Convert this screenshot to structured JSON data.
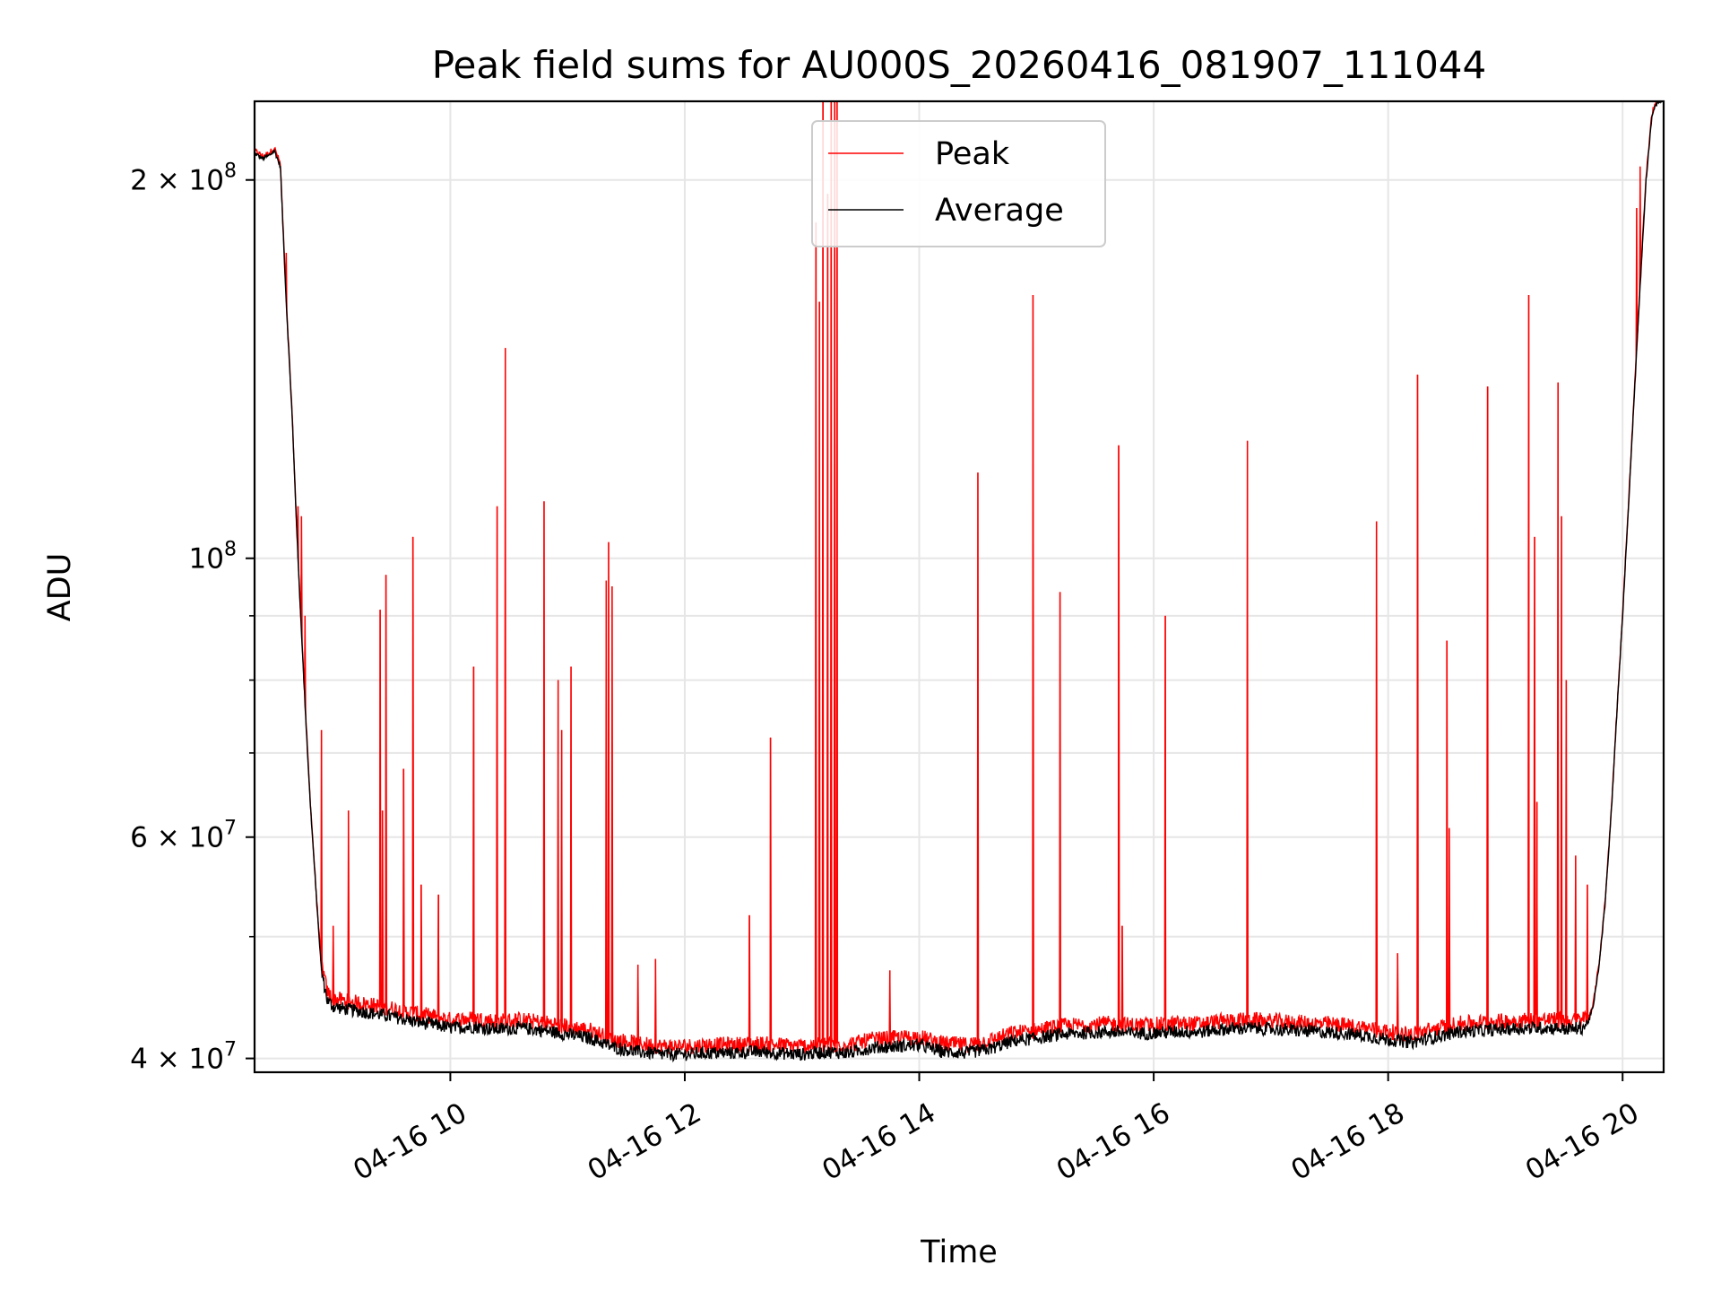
{
  "chart_data": {
    "type": "line",
    "title": "Peak field sums for AU000S_20260416_081907_111044",
    "xlabel": "Time",
    "ylabel": "ADU",
    "y_scale": "log",
    "ylim": [
      39000000,
      231000000
    ],
    "x_unit": "hours (2026-04-16)",
    "xlim": [
      8.33,
      20.35
    ],
    "grid": true,
    "legend_position": "top-center",
    "x_ticks": [
      {
        "value": 10,
        "label": "04-16 10"
      },
      {
        "value": 12,
        "label": "04-16 12"
      },
      {
        "value": 14,
        "label": "04-16 14"
      },
      {
        "value": 16,
        "label": "04-16 16"
      },
      {
        "value": 18,
        "label": "04-16 18"
      },
      {
        "value": 20,
        "label": "04-16 20"
      }
    ],
    "y_ticks": [
      {
        "value": 40000000,
        "base": "4 × 10",
        "exp": "7"
      },
      {
        "value": 60000000,
        "base": "6 × 10",
        "exp": "7"
      },
      {
        "value": 100000000,
        "base": "10",
        "exp": "8"
      },
      {
        "value": 200000000,
        "base": "2 × 10",
        "exp": "8"
      }
    ],
    "y_minor_ticks": [
      50000000,
      70000000,
      80000000,
      90000000
    ],
    "series": [
      {
        "name": "Average",
        "color": "#000000",
        "x": [
          8.33,
          8.4,
          8.45,
          8.5,
          8.55,
          8.6,
          8.65,
          8.7,
          8.75,
          8.8,
          8.85,
          8.9,
          8.95,
          9.0,
          9.1,
          9.3,
          9.5,
          9.7,
          9.9,
          10.0,
          10.2,
          10.4,
          10.6,
          10.8,
          11.0,
          11.2,
          11.4,
          11.6,
          11.8,
          12.0,
          12.2,
          12.4,
          12.6,
          12.8,
          13.0,
          13.2,
          13.4,
          13.6,
          13.8,
          14.0,
          14.2,
          14.4,
          14.6,
          14.8,
          15.0,
          15.2,
          15.4,
          15.6,
          15.8,
          16.0,
          16.2,
          16.4,
          16.6,
          16.8,
          17.0,
          17.2,
          17.4,
          17.6,
          17.8,
          18.0,
          18.2,
          18.4,
          18.6,
          18.8,
          19.0,
          19.2,
          19.4,
          19.55,
          19.65,
          19.7,
          19.75,
          19.8,
          19.85,
          19.9,
          19.95,
          20.0,
          20.05,
          20.1,
          20.15,
          20.2,
          20.25,
          20.3
        ],
        "y": [
          210000000,
          208000000,
          209000000,
          211000000,
          205000000,
          160000000,
          130000000,
          100000000,
          80000000,
          65000000,
          55000000,
          47000000,
          44500000,
          44000000,
          43800000,
          43500000,
          43200000,
          42800000,
          42500000,
          42300000,
          42400000,
          42200000,
          42300000,
          42100000,
          41800000,
          41500000,
          40800000,
          40500000,
          40300000,
          40300000,
          40400000,
          40400000,
          40500000,
          40400000,
          40300000,
          40500000,
          40400000,
          40800000,
          40900000,
          41000000,
          40500000,
          40400000,
          40700000,
          41300000,
          41500000,
          41800000,
          41900000,
          42000000,
          41900000,
          41900000,
          42000000,
          42000000,
          42200000,
          42300000,
          42200000,
          42100000,
          42000000,
          41900000,
          41700000,
          41400000,
          41200000,
          41600000,
          42000000,
          42100000,
          42200000,
          42300000,
          42300000,
          42200000,
          42300000,
          42600000,
          44000000,
          47500000,
          53000000,
          62000000,
          75000000,
          90000000,
          110000000,
          135000000,
          165000000,
          200000000,
          225000000,
          231000000
        ]
      },
      {
        "name": "Peak",
        "color": "#ff0000",
        "spikes": [
          {
            "x": 8.6,
            "y": 175000000
          },
          {
            "x": 8.7,
            "y": 110000000
          },
          {
            "x": 8.73,
            "y": 108000000
          },
          {
            "x": 8.76,
            "y": 90000000
          },
          {
            "x": 8.9,
            "y": 73000000
          },
          {
            "x": 9.0,
            "y": 51000000
          },
          {
            "x": 9.13,
            "y": 63000000
          },
          {
            "x": 9.4,
            "y": 91000000
          },
          {
            "x": 9.42,
            "y": 63000000
          },
          {
            "x": 9.45,
            "y": 97000000
          },
          {
            "x": 9.6,
            "y": 68000000
          },
          {
            "x": 9.68,
            "y": 104000000
          },
          {
            "x": 9.75,
            "y": 55000000
          },
          {
            "x": 9.9,
            "y": 54000000
          },
          {
            "x": 10.2,
            "y": 82000000
          },
          {
            "x": 10.4,
            "y": 110000000
          },
          {
            "x": 10.47,
            "y": 147000000
          },
          {
            "x": 10.8,
            "y": 111000000
          },
          {
            "x": 10.92,
            "y": 80000000
          },
          {
            "x": 10.95,
            "y": 73000000
          },
          {
            "x": 11.03,
            "y": 82000000
          },
          {
            "x": 11.33,
            "y": 96000000
          },
          {
            "x": 11.35,
            "y": 103000000
          },
          {
            "x": 11.38,
            "y": 95000000
          },
          {
            "x": 11.6,
            "y": 47500000
          },
          {
            "x": 11.75,
            "y": 48000000
          },
          {
            "x": 12.55,
            "y": 52000000
          },
          {
            "x": 12.73,
            "y": 72000000
          },
          {
            "x": 13.12,
            "y": 185000000
          },
          {
            "x": 13.15,
            "y": 160000000
          },
          {
            "x": 13.18,
            "y": 231000000
          },
          {
            "x": 13.22,
            "y": 195000000
          },
          {
            "x": 13.25,
            "y": 231000000
          },
          {
            "x": 13.28,
            "y": 231000000
          },
          {
            "x": 13.3,
            "y": 231000000
          },
          {
            "x": 13.75,
            "y": 47000000
          },
          {
            "x": 14.5,
            "y": 117000000
          },
          {
            "x": 14.97,
            "y": 162000000
          },
          {
            "x": 15.2,
            "y": 94000000
          },
          {
            "x": 15.7,
            "y": 123000000
          },
          {
            "x": 15.73,
            "y": 51000000
          },
          {
            "x": 16.1,
            "y": 90000000
          },
          {
            "x": 16.8,
            "y": 124000000
          },
          {
            "x": 17.9,
            "y": 107000000
          },
          {
            "x": 18.08,
            "y": 48500000
          },
          {
            "x": 18.25,
            "y": 140000000
          },
          {
            "x": 18.5,
            "y": 86000000
          },
          {
            "x": 18.52,
            "y": 61000000
          },
          {
            "x": 18.85,
            "y": 137000000
          },
          {
            "x": 19.2,
            "y": 162000000
          },
          {
            "x": 19.25,
            "y": 104000000
          },
          {
            "x": 19.27,
            "y": 64000000
          },
          {
            "x": 19.45,
            "y": 138000000
          },
          {
            "x": 19.48,
            "y": 108000000
          },
          {
            "x": 19.52,
            "y": 80000000
          },
          {
            "x": 19.6,
            "y": 58000000
          },
          {
            "x": 19.7,
            "y": 55000000
          },
          {
            "x": 20.12,
            "y": 190000000
          },
          {
            "x": 20.15,
            "y": 205000000
          }
        ]
      }
    ]
  }
}
